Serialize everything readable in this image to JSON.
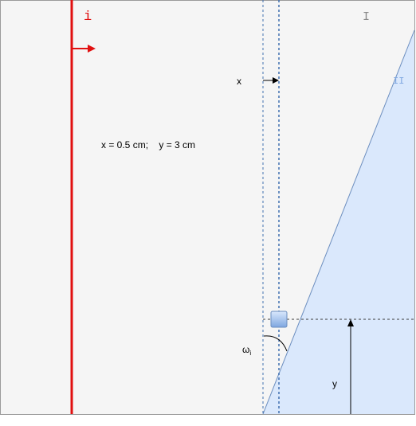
{
  "labels": {
    "incident": "i",
    "region_one": "I",
    "region_two": "II",
    "x_label": "x",
    "values_text": "x = 0.5 cm;    y = 3 cm",
    "omega": "ω",
    "omega_sub": "i",
    "y_label": "y"
  },
  "colors": {
    "background": "#f5f5f5",
    "frame": "#9a9a9a",
    "incident_line": "#e11010",
    "region_fill": "#dae8fc",
    "region_edge": "#6c8ebf",
    "guide": "#3f6fb0",
    "region_one_text": "#8a8a8a",
    "region_two_text": "#7ea6e0"
  }
}
